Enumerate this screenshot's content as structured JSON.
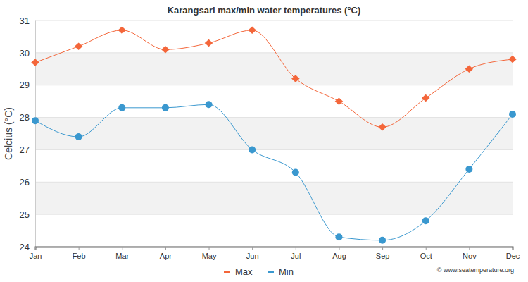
{
  "chart_data": {
    "type": "line",
    "title": "Karangsari max/min water temperatures (°C)",
    "y_label": "Celcius (°C)",
    "annotations": [
      "© www.seatemperature.org"
    ],
    "categories": [
      "Jan",
      "Feb",
      "Mar",
      "Apr",
      "May",
      "Jun",
      "Jul",
      "Aug",
      "Sep",
      "Oct",
      "Nov",
      "Dec"
    ],
    "series": [
      {
        "name": "Max",
        "color": "#f4663a",
        "marker": "diamond",
        "values": [
          29.7,
          30.2,
          30.7,
          30.1,
          30.3,
          30.7,
          29.2,
          28.5,
          27.7,
          28.6,
          29.5,
          29.8
        ]
      },
      {
        "name": "Min",
        "color": "#3a98cf",
        "marker": "circle",
        "values": [
          27.9,
          27.4,
          28.3,
          28.3,
          28.4,
          27.0,
          26.3,
          24.3,
          24.2,
          24.8,
          26.4,
          28.1
        ]
      }
    ],
    "ylim": [
      24,
      31
    ],
    "yticks": [
      24,
      25,
      26,
      27,
      28,
      29,
      30,
      31
    ],
    "grid": true,
    "legend": "bottom"
  }
}
